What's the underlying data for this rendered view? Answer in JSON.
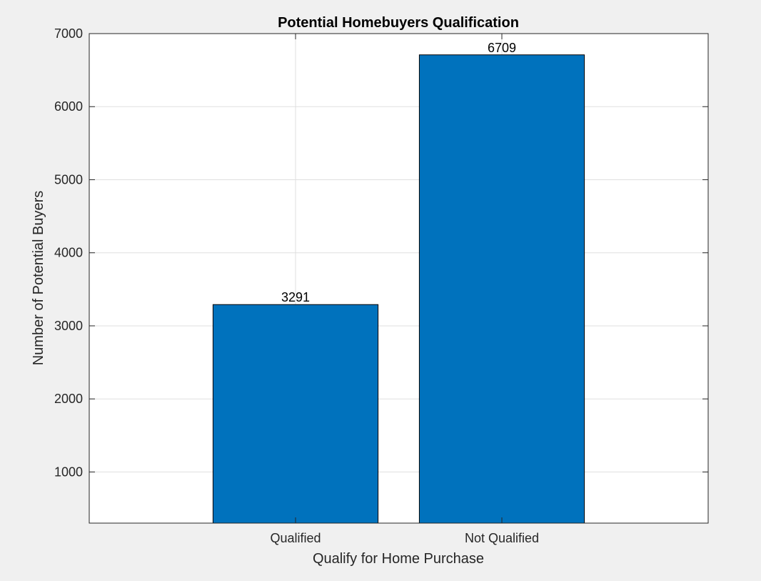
{
  "chart_data": {
    "type": "bar",
    "title": "Potential Homebuyers Qualification",
    "xlabel": "Qualify for Home Purchase",
    "ylabel": "Number of Potential Buyers",
    "categories": [
      "Qualified",
      "Not Qualified"
    ],
    "values": [
      3291,
      6709
    ],
    "data_labels": [
      "3291",
      "6709"
    ],
    "xlim": [
      0,
      3
    ],
    "ylim": [
      300,
      7000
    ],
    "y_ticks": [
      1000,
      2000,
      3000,
      4000,
      5000,
      6000,
      7000
    ],
    "y_tick_labels": [
      "1000",
      "2000",
      "3000",
      "4000",
      "5000",
      "6000",
      "7000"
    ],
    "grid": true,
    "legend": "none",
    "colors": {
      "bar": "#0072bd",
      "bar_edge": "#000000",
      "figure_background": "#f0f0f0",
      "axes_background": "#ffffff",
      "grid": "#dfdfdf"
    }
  }
}
